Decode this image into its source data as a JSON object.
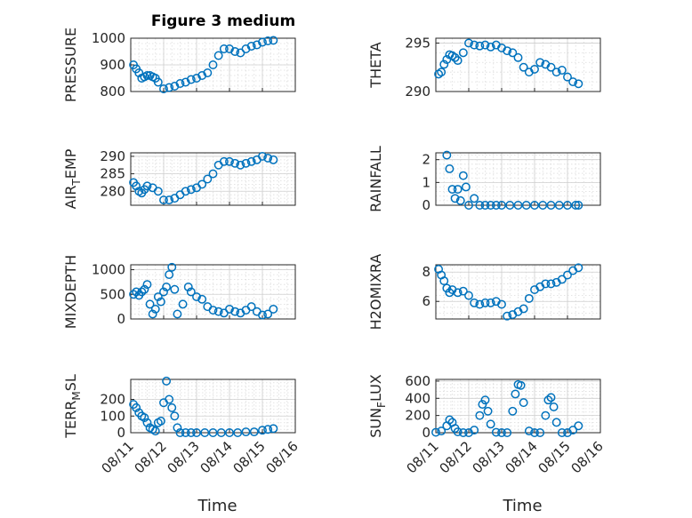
{
  "figure": {
    "title": "Figure 3 medium",
    "marker_color": "#0072BD"
  },
  "chart_data": [
    {
      "type": "scatter",
      "name": "PRESSURE",
      "ylabel": "PRESSURE",
      "xlabel": "",
      "ylim": [
        800,
        1000
      ],
      "yticks": [
        800,
        900,
        1000
      ],
      "xlim": [
        "08/11",
        "08/16"
      ],
      "xtick_labels": [],
      "grid": true,
      "x": [
        "08/11 02:00",
        "08/11 04:00",
        "08/11 06:00",
        "08/11 08:00",
        "08/11 10:00",
        "08/11 12:00",
        "08/11 14:00",
        "08/11 16:00",
        "08/11 18:00",
        "08/11 20:00",
        "08/12 00:00",
        "08/12 04:00",
        "08/12 08:00",
        "08/12 12:00",
        "08/12 16:00",
        "08/12 20:00",
        "08/13 00:00",
        "08/13 04:00",
        "08/13 08:00",
        "08/13 12:00",
        "08/13 16:00",
        "08/13 20:00",
        "08/14 00:00",
        "08/14 04:00",
        "08/14 08:00",
        "08/14 12:00",
        "08/14 16:00",
        "08/14 20:00",
        "08/15 00:00",
        "08/15 04:00",
        "08/15 08:00"
      ],
      "y": [
        900,
        885,
        870,
        850,
        855,
        860,
        860,
        855,
        850,
        835,
        810,
        815,
        820,
        830,
        835,
        845,
        850,
        860,
        870,
        900,
        935,
        960,
        960,
        950,
        945,
        960,
        970,
        975,
        985,
        990,
        992
      ]
    },
    {
      "type": "scatter",
      "name": "THETA",
      "ylabel": "THETA",
      "xlabel": "",
      "ylim": [
        290,
        295.5
      ],
      "yticks": [
        290,
        295
      ],
      "xlim": [
        "08/11",
        "08/16"
      ],
      "xtick_labels": [],
      "grid": true,
      "x": [
        "08/11 02:00",
        "08/11 04:00",
        "08/11 06:00",
        "08/11 08:00",
        "08/11 10:00",
        "08/11 12:00",
        "08/11 14:00",
        "08/11 16:00",
        "08/11 20:00",
        "08/12 00:00",
        "08/12 04:00",
        "08/12 08:00",
        "08/12 12:00",
        "08/12 16:00",
        "08/12 20:00",
        "08/13 00:00",
        "08/13 04:00",
        "08/13 08:00",
        "08/13 12:00",
        "08/13 16:00",
        "08/13 20:00",
        "08/14 00:00",
        "08/14 04:00",
        "08/14 08:00",
        "08/14 12:00",
        "08/14 16:00",
        "08/14 20:00",
        "08/15 00:00",
        "08/15 04:00",
        "08/15 08:00"
      ],
      "y": [
        291.8,
        292.0,
        292.8,
        293.3,
        293.8,
        293.7,
        293.5,
        293.2,
        294.0,
        295.0,
        294.8,
        294.7,
        294.8,
        294.6,
        294.8,
        294.5,
        294.2,
        294.0,
        293.5,
        292.5,
        292.0,
        292.3,
        293.0,
        292.8,
        292.5,
        292.0,
        292.2,
        291.5,
        291.0,
        290.8
      ]
    },
    {
      "type": "scatter",
      "name": "AIR_TEMP",
      "ylabel": "AIR_TEMP",
      "xlabel": "",
      "ylim": [
        276,
        291
      ],
      "yticks": [
        280,
        285,
        290
      ],
      "xlim": [
        "08/11",
        "08/16"
      ],
      "xtick_labels": [],
      "grid": true,
      "x": [
        "08/11 02:00",
        "08/11 04:00",
        "08/11 06:00",
        "08/11 08:00",
        "08/11 10:00",
        "08/11 12:00",
        "08/11 16:00",
        "08/11 20:00",
        "08/12 00:00",
        "08/12 04:00",
        "08/12 08:00",
        "08/12 12:00",
        "08/12 16:00",
        "08/12 20:00",
        "08/13 00:00",
        "08/13 04:00",
        "08/13 08:00",
        "08/13 12:00",
        "08/13 16:00",
        "08/13 20:00",
        "08/14 00:00",
        "08/14 04:00",
        "08/14 08:00",
        "08/14 12:00",
        "08/14 16:00",
        "08/14 20:00",
        "08/15 00:00",
        "08/15 04:00",
        "08/15 08:00"
      ],
      "y": [
        282.5,
        281.5,
        280.0,
        279.5,
        280.5,
        281.5,
        281.0,
        280.0,
        277.5,
        277.5,
        278.0,
        279.0,
        280.0,
        280.5,
        281.0,
        282.0,
        283.5,
        285.0,
        287.5,
        288.5,
        288.5,
        288.0,
        287.5,
        288.0,
        288.5,
        289.0,
        290.0,
        289.5,
        289.0
      ]
    },
    {
      "type": "scatter",
      "name": "RAINFALL",
      "ylabel": "RAINFALL",
      "xlabel": "",
      "ylim": [
        0,
        2.3
      ],
      "yticks": [
        0,
        1,
        2
      ],
      "xlim": [
        "08/11",
        "08/16"
      ],
      "xtick_labels": [],
      "grid": true,
      "x": [
        "08/11 08:00",
        "08/11 10:00",
        "08/11 12:00",
        "08/11 14:00",
        "08/11 16:00",
        "08/11 18:00",
        "08/11 20:00",
        "08/11 22:00",
        "08/12 00:00",
        "08/12 04:00",
        "08/12 08:00",
        "08/12 12:00",
        "08/12 16:00",
        "08/12 20:00",
        "08/13 00:00",
        "08/13 06:00",
        "08/13 12:00",
        "08/13 18:00",
        "08/14 00:00",
        "08/14 06:00",
        "08/14 12:00",
        "08/14 18:00",
        "08/15 00:00",
        "08/15 06:00",
        "08/15 08:00"
      ],
      "y": [
        2.2,
        1.6,
        0.7,
        0.3,
        0.7,
        0.2,
        1.3,
        0.8,
        0.0,
        0.3,
        0.0,
        0.0,
        0.0,
        0.0,
        0.0,
        0.0,
        0.0,
        0.0,
        0.0,
        0.0,
        0.0,
        0.0,
        0.0,
        0.0,
        0.0
      ]
    },
    {
      "type": "scatter",
      "name": "MIXDEPTH",
      "ylabel": "MIXDEPTH",
      "xlabel": "",
      "ylim": [
        0,
        1100
      ],
      "yticks": [
        0,
        500,
        1000
      ],
      "xlim": [
        "08/11",
        "08/16"
      ],
      "xtick_labels": [],
      "grid": true,
      "x": [
        "08/11 02:00",
        "08/11 04:00",
        "08/11 06:00",
        "08/11 08:00",
        "08/11 10:00",
        "08/11 12:00",
        "08/11 14:00",
        "08/11 16:00",
        "08/11 18:00",
        "08/11 20:00",
        "08/11 22:00",
        "08/12 00:00",
        "08/12 02:00",
        "08/12 04:00",
        "08/12 06:00",
        "08/12 08:00",
        "08/12 10:00",
        "08/12 14:00",
        "08/12 18:00",
        "08/12 20:00",
        "08/13 00:00",
        "08/13 04:00",
        "08/13 08:00",
        "08/13 12:00",
        "08/13 16:00",
        "08/13 20:00",
        "08/14 00:00",
        "08/14 04:00",
        "08/14 08:00",
        "08/14 12:00",
        "08/14 16:00",
        "08/14 20:00",
        "08/15 00:00",
        "08/15 04:00",
        "08/15 08:00"
      ],
      "y": [
        500,
        550,
        480,
        550,
        600,
        700,
        300,
        100,
        200,
        450,
        350,
        550,
        650,
        900,
        1050,
        600,
        100,
        300,
        650,
        550,
        450,
        400,
        250,
        180,
        150,
        120,
        200,
        150,
        120,
        180,
        250,
        150,
        80,
        100,
        200
      ]
    },
    {
      "type": "scatter",
      "name": "H2OMIXRA",
      "ylabel": "H2OMIXRA",
      "xlabel": "",
      "ylim": [
        4.8,
        8.5
      ],
      "yticks": [
        6,
        8
      ],
      "xlim": [
        "08/11",
        "08/16"
      ],
      "xtick_labels": [],
      "grid": true,
      "x": [
        "08/11 02:00",
        "08/11 04:00",
        "08/11 06:00",
        "08/11 08:00",
        "08/11 10:00",
        "08/11 12:00",
        "08/11 16:00",
        "08/11 20:00",
        "08/12 00:00",
        "08/12 04:00",
        "08/12 08:00",
        "08/12 12:00",
        "08/12 16:00",
        "08/12 20:00",
        "08/13 00:00",
        "08/13 04:00",
        "08/13 08:00",
        "08/13 12:00",
        "08/13 16:00",
        "08/13 20:00",
        "08/14 00:00",
        "08/14 04:00",
        "08/14 08:00",
        "08/14 12:00",
        "08/14 16:00",
        "08/14 20:00",
        "08/15 00:00",
        "08/15 04:00",
        "08/15 08:00"
      ],
      "y": [
        8.2,
        7.8,
        7.4,
        6.9,
        6.6,
        6.8,
        6.6,
        6.7,
        6.4,
        5.9,
        5.8,
        5.9,
        5.9,
        6.0,
        5.8,
        5.0,
        5.1,
        5.3,
        5.5,
        6.2,
        6.8,
        7.0,
        7.2,
        7.2,
        7.3,
        7.5,
        7.8,
        8.1,
        8.3
      ]
    },
    {
      "type": "scatter",
      "name": "TERR_MSL",
      "ylabel": "TERR_MSL",
      "xlabel": "Time",
      "ylim": [
        0,
        320
      ],
      "yticks": [
        0,
        100,
        200
      ],
      "xlim": [
        "08/11",
        "08/16"
      ],
      "xtick_labels": [
        "08/11",
        "08/12",
        "08/13",
        "08/14",
        "08/15",
        "08/16"
      ],
      "grid": true,
      "x": [
        "08/11 02:00",
        "08/11 04:00",
        "08/11 06:00",
        "08/11 08:00",
        "08/11 10:00",
        "08/11 12:00",
        "08/11 14:00",
        "08/11 16:00",
        "08/11 18:00",
        "08/11 20:00",
        "08/11 22:00",
        "08/12 00:00",
        "08/12 02:00",
        "08/12 04:00",
        "08/12 06:00",
        "08/12 08:00",
        "08/12 10:00",
        "08/12 12:00",
        "08/12 16:00",
        "08/12 20:00",
        "08/13 00:00",
        "08/13 06:00",
        "08/13 12:00",
        "08/13 18:00",
        "08/14 00:00",
        "08/14 06:00",
        "08/14 12:00",
        "08/14 18:00",
        "08/15 00:00",
        "08/15 04:00",
        "08/15 08:00"
      ],
      "y": [
        170,
        150,
        120,
        100,
        90,
        60,
        30,
        20,
        10,
        60,
        70,
        180,
        310,
        200,
        150,
        100,
        30,
        0,
        0,
        0,
        0,
        0,
        0,
        0,
        0,
        0,
        5,
        5,
        15,
        20,
        25
      ]
    },
    {
      "type": "scatter",
      "name": "SUN_FLUX",
      "ylabel": "SUN_FLUX",
      "xlabel": "Time",
      "ylim": [
        0,
        620
      ],
      "yticks": [
        0,
        200,
        400,
        600
      ],
      "xlim": [
        "08/11",
        "08/16"
      ],
      "xtick_labels": [
        "08/11",
        "08/12",
        "08/13",
        "08/14",
        "08/15",
        "08/16"
      ],
      "grid": true,
      "x": [
        "08/11 00:00",
        "08/11 04:00",
        "08/11 08:00",
        "08/11 10:00",
        "08/11 12:00",
        "08/11 14:00",
        "08/11 16:00",
        "08/11 20:00",
        "08/12 00:00",
        "08/12 04:00",
        "08/12 08:00",
        "08/12 10:00",
        "08/12 12:00",
        "08/12 14:00",
        "08/12 16:00",
        "08/12 20:00",
        "08/13 00:00",
        "08/13 04:00",
        "08/13 08:00",
        "08/13 10:00",
        "08/13 12:00",
        "08/13 14:00",
        "08/13 16:00",
        "08/13 20:00",
        "08/14 00:00",
        "08/14 04:00",
        "08/14 08:00",
        "08/14 10:00",
        "08/14 12:00",
        "08/14 14:00",
        "08/14 16:00",
        "08/14 20:00",
        "08/15 00:00",
        "08/15 04:00",
        "08/15 08:00"
      ],
      "y": [
        5,
        20,
        80,
        150,
        120,
        50,
        10,
        0,
        0,
        30,
        200,
        330,
        380,
        250,
        100,
        5,
        0,
        0,
        250,
        450,
        560,
        550,
        350,
        20,
        0,
        0,
        200,
        380,
        410,
        300,
        120,
        0,
        0,
        30,
        80
      ]
    }
  ]
}
